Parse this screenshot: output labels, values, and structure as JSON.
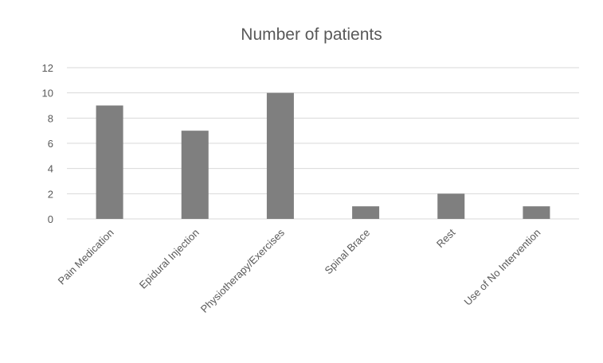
{
  "chart_data": {
    "type": "bar",
    "title": "Number of patients",
    "xlabel": "",
    "ylabel": "",
    "categories": [
      "Pain Medication",
      "Epidural Injection",
      "Physiotherapy/Exercises",
      "Spinal Brace",
      "Rest",
      "Use of No Intervention"
    ],
    "series": [
      {
        "values": [
          9,
          7,
          10,
          1,
          2,
          1
        ]
      }
    ],
    "ylim": [
      0,
      12
    ],
    "yticks": [
      "0",
      "2",
      "4",
      "6",
      "8",
      "10",
      "12"
    ],
    "grid": true,
    "legend": "none",
    "colors": {
      "bar": "#7f7f7f",
      "grid": "#d9d9d9",
      "text": "#595959"
    }
  }
}
